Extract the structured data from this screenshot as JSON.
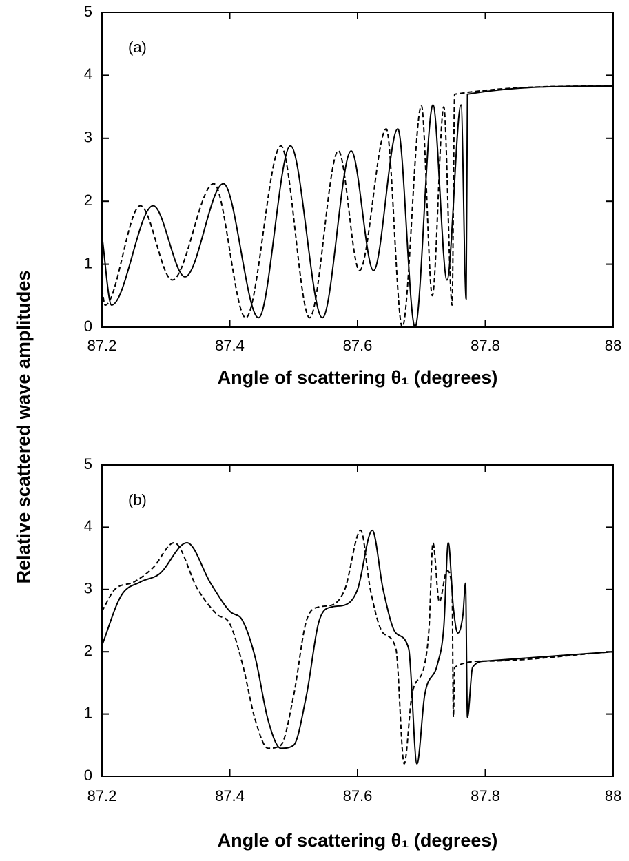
{
  "chart_data": [
    {
      "type": "line",
      "annotation": "(a)",
      "xlabel": "Angle of scattering θ₁ (degrees)",
      "ylabel": "Relative scattered wave amplitudes",
      "xlim": [
        87.2,
        88
      ],
      "ylim": [
        0,
        5
      ],
      "xticks": [
        87.2,
        87.4,
        87.6,
        87.8,
        88
      ],
      "yticks": [
        0,
        1,
        2,
        3,
        4,
        5
      ],
      "series": [
        {
          "color": "#000000",
          "linestyle": "solid",
          "x": [
            87.2,
            87.215,
            87.28,
            87.33,
            87.39,
            87.445,
            87.495,
            87.545,
            87.59,
            87.625,
            87.663,
            87.69,
            87.718,
            87.74,
            87.762,
            87.77,
            87.772,
            88
          ],
          "values": [
            1.45,
            0.35,
            1.93,
            0.8,
            2.28,
            0.15,
            2.88,
            0.15,
            2.8,
            0.9,
            3.15,
            0,
            3.53,
            0.75,
            3.53,
            0.45,
            3.7,
            3.83
          ]
        },
        {
          "color": "#000000",
          "linestyle": "dashed",
          "x": [
            87.2,
            87.205,
            87.26,
            87.31,
            87.375,
            87.425,
            87.48,
            87.525,
            87.57,
            87.603,
            87.645,
            87.67,
            87.7,
            87.717,
            87.735,
            87.748,
            87.752,
            88
          ],
          "values": [
            0.6,
            0.35,
            1.93,
            0.75,
            2.28,
            0.15,
            2.88,
            0.15,
            2.8,
            0.9,
            3.15,
            0,
            3.52,
            0.5,
            3.5,
            0.35,
            3.7,
            3.83
          ]
        }
      ]
    },
    {
      "type": "line",
      "annotation": "(b)",
      "xlabel": "Angle of scattering θ₁ (degrees)",
      "xlim": [
        87.2,
        88
      ],
      "ylim": [
        0,
        5
      ],
      "xticks": [
        87.2,
        87.4,
        87.6,
        87.8,
        88
      ],
      "yticks": [
        0,
        1,
        2,
        3,
        4,
        5
      ],
      "series": [
        {
          "color": "#000000",
          "linestyle": "solid",
          "x": [
            87.2,
            87.23,
            87.26,
            87.29,
            87.333,
            87.37,
            87.4,
            87.42,
            87.44,
            87.46,
            87.48,
            87.5,
            87.52,
            87.54,
            87.56,
            87.58,
            87.6,
            87.623,
            87.64,
            87.66,
            87.68,
            87.693,
            87.705,
            87.725,
            87.735,
            87.742,
            87.75,
            87.757,
            87.765,
            87.769,
            87.772,
            87.78,
            87.8,
            88
          ],
          "values": [
            2.1,
            2.9,
            3.12,
            3.25,
            3.75,
            3.1,
            2.65,
            2.5,
            1.9,
            0.9,
            0.45,
            0.5,
            1.3,
            2.5,
            2.72,
            2.75,
            3.0,
            3.95,
            3.0,
            2.3,
            2.05,
            0.2,
            1.3,
            1.8,
            2.4,
            3.75,
            2.7,
            2.3,
            2.6,
            3.1,
            0.95,
            1.75,
            1.85,
            2.0
          ]
        },
        {
          "color": "#000000",
          "linestyle": "dashed",
          "x": [
            87.2,
            87.22,
            87.25,
            87.28,
            87.313,
            87.35,
            87.38,
            87.4,
            87.42,
            87.44,
            87.46,
            87.48,
            87.5,
            87.52,
            87.54,
            87.56,
            87.58,
            87.605,
            87.62,
            87.64,
            87.66,
            87.673,
            87.685,
            87.705,
            87.712,
            87.718,
            87.728,
            87.74,
            87.748,
            87.75,
            87.752,
            87.8,
            88
          ],
          "values": [
            2.65,
            3.0,
            3.12,
            3.35,
            3.75,
            3.0,
            2.6,
            2.45,
            1.8,
            0.9,
            0.45,
            0.5,
            1.3,
            2.5,
            2.72,
            2.75,
            3.0,
            3.95,
            3.0,
            2.3,
            2.05,
            0.2,
            1.3,
            1.8,
            2.4,
            3.75,
            2.8,
            3.3,
            3.0,
            0.95,
            1.75,
            1.85,
            2.0
          ]
        }
      ]
    }
  ]
}
